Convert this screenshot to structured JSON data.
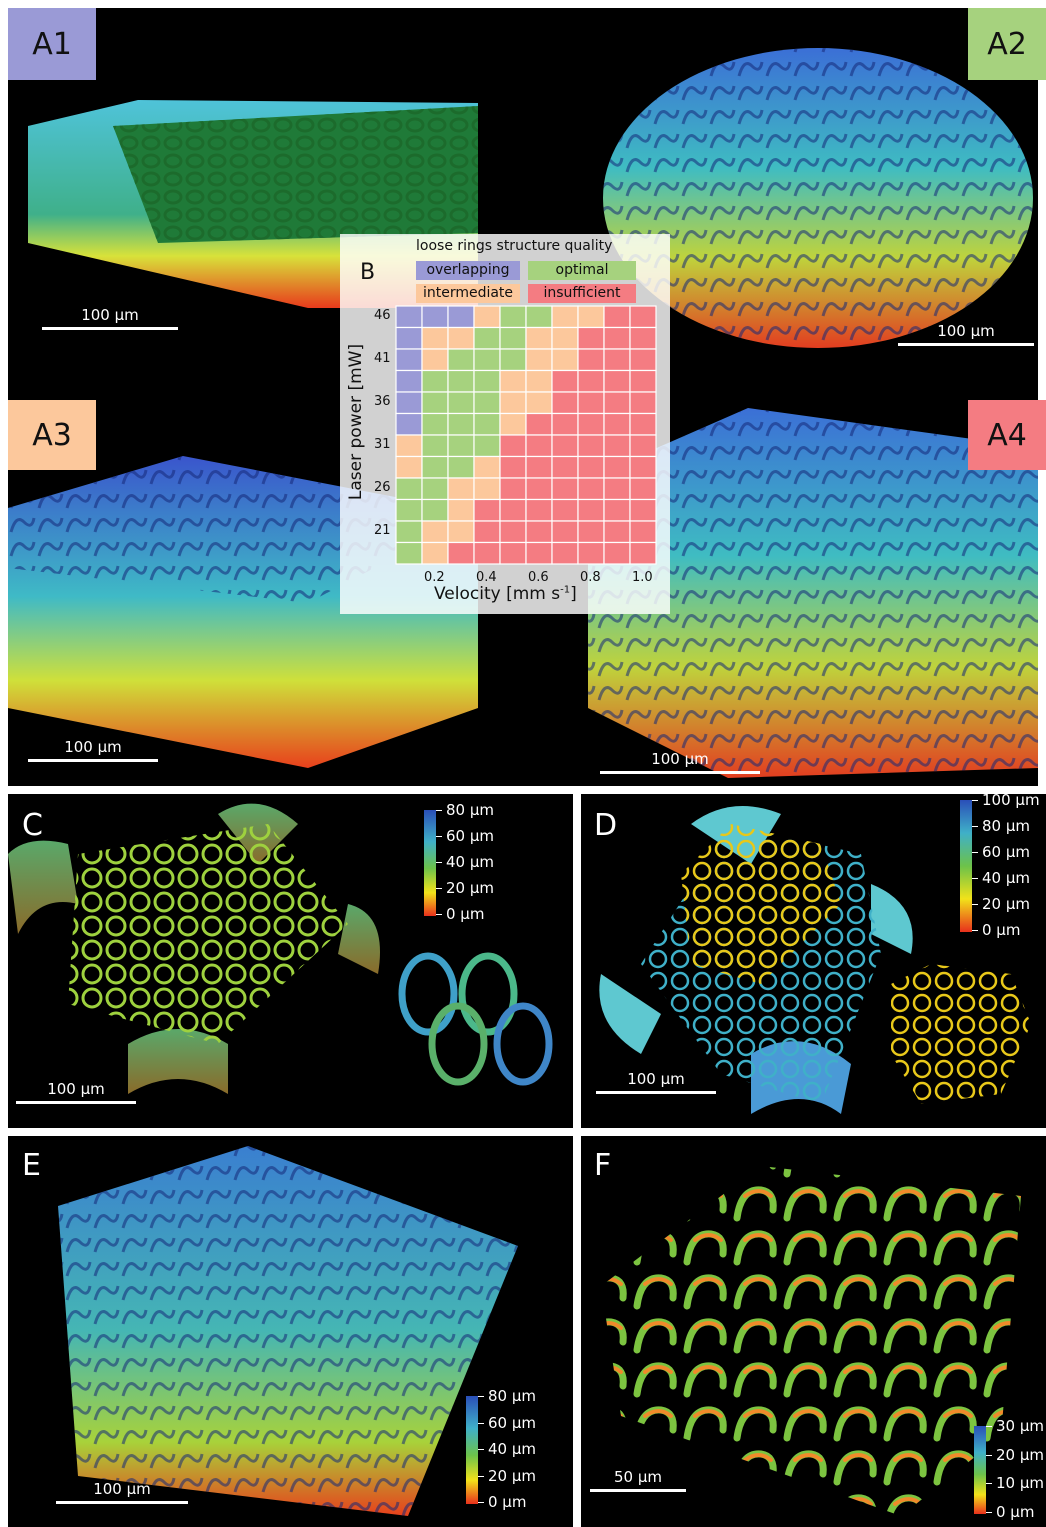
{
  "colors": {
    "overlapping": "#9a9ad6",
    "optimal": "#a6d27e",
    "intermediate": "#fcc89c",
    "insufficient": "#f47c82"
  },
  "panels": {
    "A1": {
      "label": "A1",
      "scale": "100 µm"
    },
    "A2": {
      "label": "A2",
      "scale": "100 µm"
    },
    "A3": {
      "label": "A3",
      "scale": "100 µm"
    },
    "A4": {
      "label": "A4",
      "scale": "100 µm"
    },
    "C": {
      "label": "C",
      "scale": "100 µm",
      "colorbar": [
        "80 µm",
        "60 µm",
        "40 µm",
        "20 µm",
        "0 µm"
      ]
    },
    "D": {
      "label": "D",
      "scale": "100 µm",
      "colorbar": [
        "100 µm",
        "80 µm",
        "60 µm",
        "40 µm",
        "20 µm",
        "0 µm"
      ]
    },
    "E": {
      "label": "E",
      "scale": "100 µm",
      "colorbar": [
        "80 µm",
        "60 µm",
        "40 µm",
        "20 µm",
        "0 µm"
      ]
    },
    "F": {
      "label": "F",
      "scale": "50 µm",
      "colorbar": [
        "30 µm",
        "20 µm",
        "10 µm",
        "0 µm"
      ]
    }
  },
  "chart_data": {
    "type": "heatmap",
    "panel_label": "B",
    "legend_title": "loose rings structure quality",
    "legend": [
      "overlapping",
      "optimal",
      "intermediate",
      "insufficient"
    ],
    "xlabel": "Velocity [mm s-1]",
    "ylabel": "Laser power [mW]",
    "x": [
      0.1,
      0.2,
      0.3,
      0.4,
      0.5,
      0.6,
      0.7,
      0.8,
      0.9,
      1.0
    ],
    "xticks": [
      "0.2",
      "0.4",
      "0.6",
      "0.8",
      "1.0"
    ],
    "y": [
      46,
      44,
      41,
      39,
      36,
      34,
      31,
      29,
      26,
      24,
      21,
      19
    ],
    "yticks": [
      "46",
      "41",
      "36",
      "31",
      "26",
      "21"
    ],
    "cells": [
      [
        "overlapping",
        "overlapping",
        "overlapping",
        "intermediate",
        "optimal",
        "optimal",
        "intermediate",
        "intermediate",
        "insufficient",
        "insufficient"
      ],
      [
        "overlapping",
        "intermediate",
        "intermediate",
        "optimal",
        "optimal",
        "intermediate",
        "intermediate",
        "insufficient",
        "insufficient",
        "insufficient"
      ],
      [
        "overlapping",
        "intermediate",
        "optimal",
        "optimal",
        "optimal",
        "intermediate",
        "intermediate",
        "insufficient",
        "insufficient",
        "insufficient"
      ],
      [
        "overlapping",
        "optimal",
        "optimal",
        "optimal",
        "intermediate",
        "intermediate",
        "insufficient",
        "insufficient",
        "insufficient",
        "insufficient"
      ],
      [
        "overlapping",
        "optimal",
        "optimal",
        "optimal",
        "intermediate",
        "intermediate",
        "insufficient",
        "insufficient",
        "insufficient",
        "insufficient"
      ],
      [
        "overlapping",
        "optimal",
        "optimal",
        "optimal",
        "intermediate",
        "insufficient",
        "insufficient",
        "insufficient",
        "insufficient",
        "insufficient"
      ],
      [
        "intermediate",
        "optimal",
        "optimal",
        "optimal",
        "insufficient",
        "insufficient",
        "insufficient",
        "insufficient",
        "insufficient",
        "insufficient"
      ],
      [
        "intermediate",
        "optimal",
        "optimal",
        "intermediate",
        "insufficient",
        "insufficient",
        "insufficient",
        "insufficient",
        "insufficient",
        "insufficient"
      ],
      [
        "optimal",
        "optimal",
        "intermediate",
        "intermediate",
        "insufficient",
        "insufficient",
        "insufficient",
        "insufficient",
        "insufficient",
        "insufficient"
      ],
      [
        "optimal",
        "optimal",
        "intermediate",
        "insufficient",
        "insufficient",
        "insufficient",
        "insufficient",
        "insufficient",
        "insufficient",
        "insufficient"
      ],
      [
        "optimal",
        "intermediate",
        "intermediate",
        "insufficient",
        "insufficient",
        "insufficient",
        "insufficient",
        "insufficient",
        "insufficient",
        "insufficient"
      ],
      [
        "optimal",
        "intermediate",
        "insufficient",
        "insufficient",
        "insufficient",
        "insufficient",
        "insufficient",
        "insufficient",
        "insufficient",
        "insufficient"
      ]
    ]
  }
}
